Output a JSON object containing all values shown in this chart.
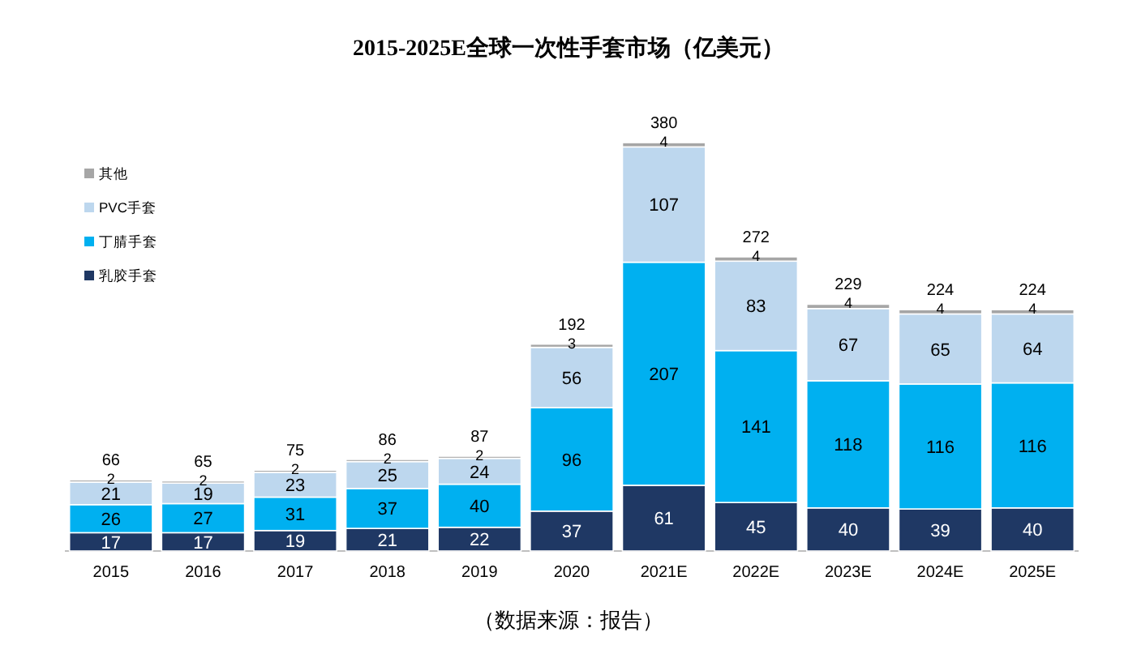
{
  "chart_data": {
    "type": "bar",
    "title": "2015-2025E全球一次性手套市场（亿美元）",
    "categories": [
      "2015",
      "2016",
      "2017",
      "2018",
      "2019",
      "2020",
      "2021E",
      "2022E",
      "2023E",
      "2024E",
      "2025E"
    ],
    "stacked": true,
    "data_labels": true,
    "legend": "top left",
    "series": [
      {
        "name": "乳胶手套",
        "color": "#1f3864",
        "values": [
          17,
          17,
          19,
          21,
          22,
          37,
          61,
          45,
          40,
          39,
          40
        ]
      },
      {
        "name": "丁腈手套",
        "color": "#00b0f0",
        "values": [
          26,
          27,
          31,
          37,
          40,
          96,
          207,
          141,
          118,
          116,
          116
        ]
      },
      {
        "name": "PVC手套",
        "color": "#bdd7ee",
        "values": [
          21,
          19,
          23,
          25,
          24,
          56,
          107,
          83,
          67,
          65,
          64
        ]
      },
      {
        "name": "其他",
        "color": "#a6a6a6",
        "values": [
          2,
          2,
          2,
          2,
          2,
          3,
          4,
          4,
          4,
          4,
          4
        ]
      }
    ],
    "totals": [
      "66",
      "65",
      "75",
      "86",
      "87",
      "192",
      "380",
      "272",
      "229",
      "224",
      "224"
    ],
    "annotations": [
      "（数据来源：报告）"
    ]
  }
}
